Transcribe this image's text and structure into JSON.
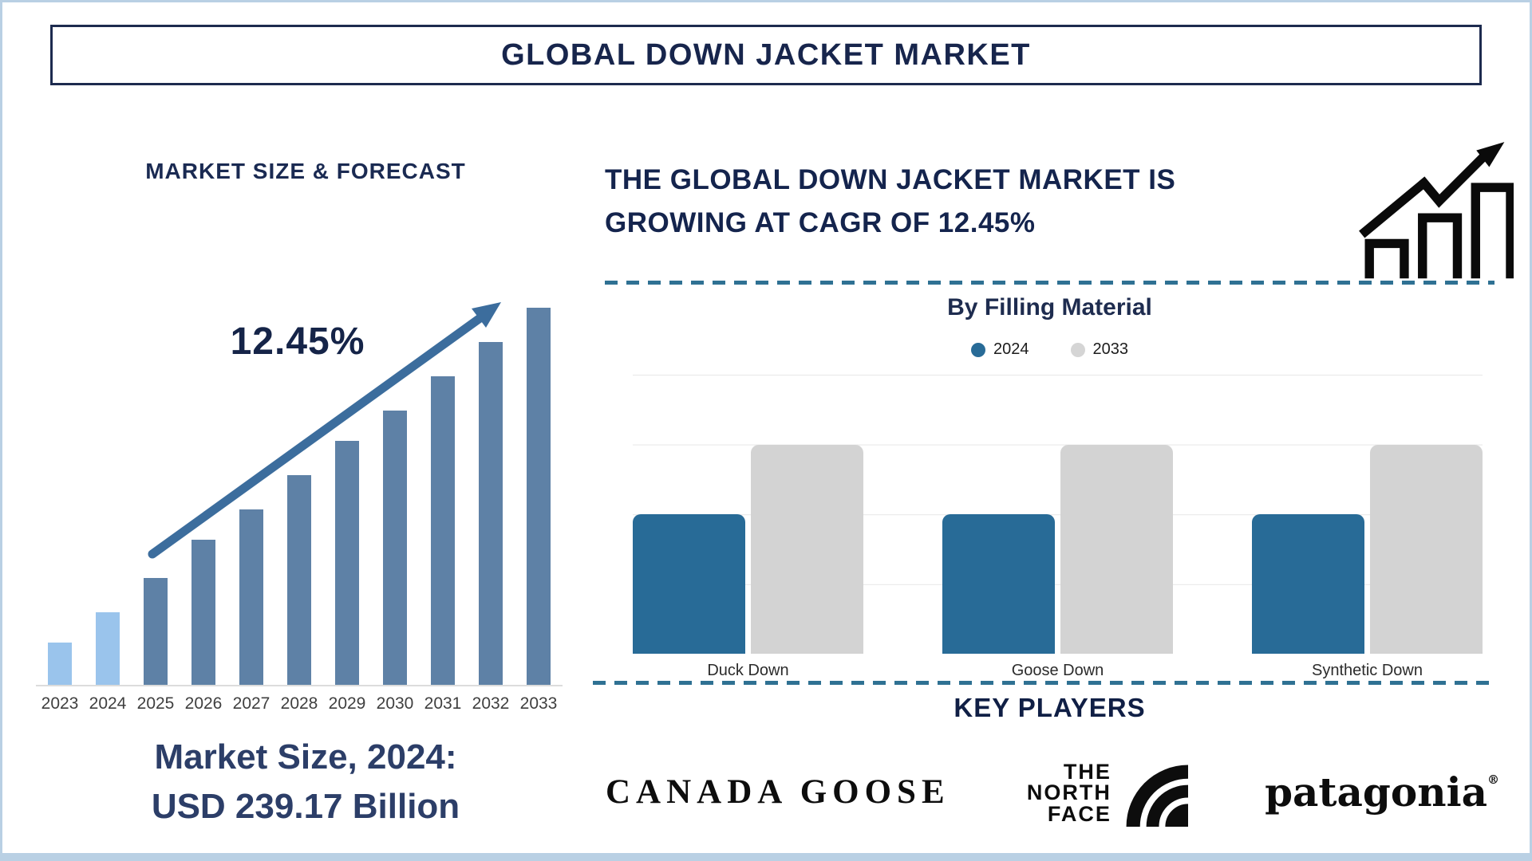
{
  "page": {
    "title": "GLOBAL DOWN JACKET MARKET"
  },
  "left": {
    "heading": "MARKET SIZE & FORECAST",
    "cagr_label": "12.45%",
    "market_size_line1": "Market Size, 2024:",
    "market_size_line2": "USD 239.17 Billion"
  },
  "right": {
    "headline_line1": "THE GLOBAL DOWN JACKET MARKET IS",
    "headline_line2": "GROWING AT CAGR OF 12.45%",
    "section_title": "By Filling Material",
    "legend": [
      {
        "label": "2024",
        "color": "#286b97"
      },
      {
        "label": "2033",
        "color": "#d5d5d5"
      }
    ],
    "key_players_title": "KEY PLAYERS",
    "logos": {
      "canada_goose": "CANADA GOOSE",
      "north_face_lines": [
        "THE",
        "NORTH",
        "FACE"
      ],
      "patagonia": "patagonia",
      "patagonia_reg": "®"
    }
  },
  "chart_data": [
    {
      "id": "market-size-forecast",
      "type": "bar",
      "title": "MARKET SIZE & FORECAST",
      "categories": [
        "2023",
        "2024",
        "2025",
        "2026",
        "2027",
        "2028",
        "2029",
        "2030",
        "2031",
        "2032",
        "2033"
      ],
      "values_usd_billion_estimated": [
        212.7,
        239.17,
        268.95,
        302.44,
        340.1,
        382.44,
        430.06,
        483.6,
        543.81,
        611.52,
        687.66
      ],
      "bar_heights_pct_of_plot": [
        11,
        19,
        28,
        38,
        46,
        55,
        64,
        72,
        81,
        90,
        99
      ],
      "bar_colors": [
        "#9ac4ec",
        "#9ac4ec",
        "#5e81a6",
        "#5e81a6",
        "#5e81a6",
        "#5e81a6",
        "#5e81a6",
        "#5e81a6",
        "#5e81a6",
        "#5e81a6",
        "#5e81a6"
      ],
      "annotation": "12.45%",
      "note_shown_on_chart": "Market Size, 2024: USD 239.17 Billion",
      "cagr_pct": 12.45,
      "xlabel": "",
      "ylabel": "",
      "y_axis_ticks_shown": false,
      "grid": false
    },
    {
      "id": "by-filling-material",
      "type": "bar",
      "title": "By Filling Material",
      "categories": [
        "Duck Down",
        "Goose Down",
        "Synthetic Down"
      ],
      "series": [
        {
          "name": "2024",
          "color": "#286b97",
          "values_pct_of_axis": [
            50,
            50,
            50
          ]
        },
        {
          "name": "2033",
          "color": "#d3d3d3",
          "values_pct_of_axis": [
            75,
            75,
            75
          ]
        }
      ],
      "xlabel": "",
      "ylabel": "",
      "y_axis_ticks_shown": false,
      "grid": true,
      "legend_position": "top"
    }
  ],
  "colors": {
    "outer_border": "#b9d0e4",
    "title_navy": "#17254c",
    "trend_arrow": "#3c6d9d",
    "dashed_separator": "#2f7193",
    "gridline": "#e7e7e7",
    "bar_blue_2024": "#286b97",
    "bar_gray_2033": "#d3d3d3",
    "bar_light_blue": "#9ac4ec",
    "bar_slate_blue": "#5e81a6"
  }
}
